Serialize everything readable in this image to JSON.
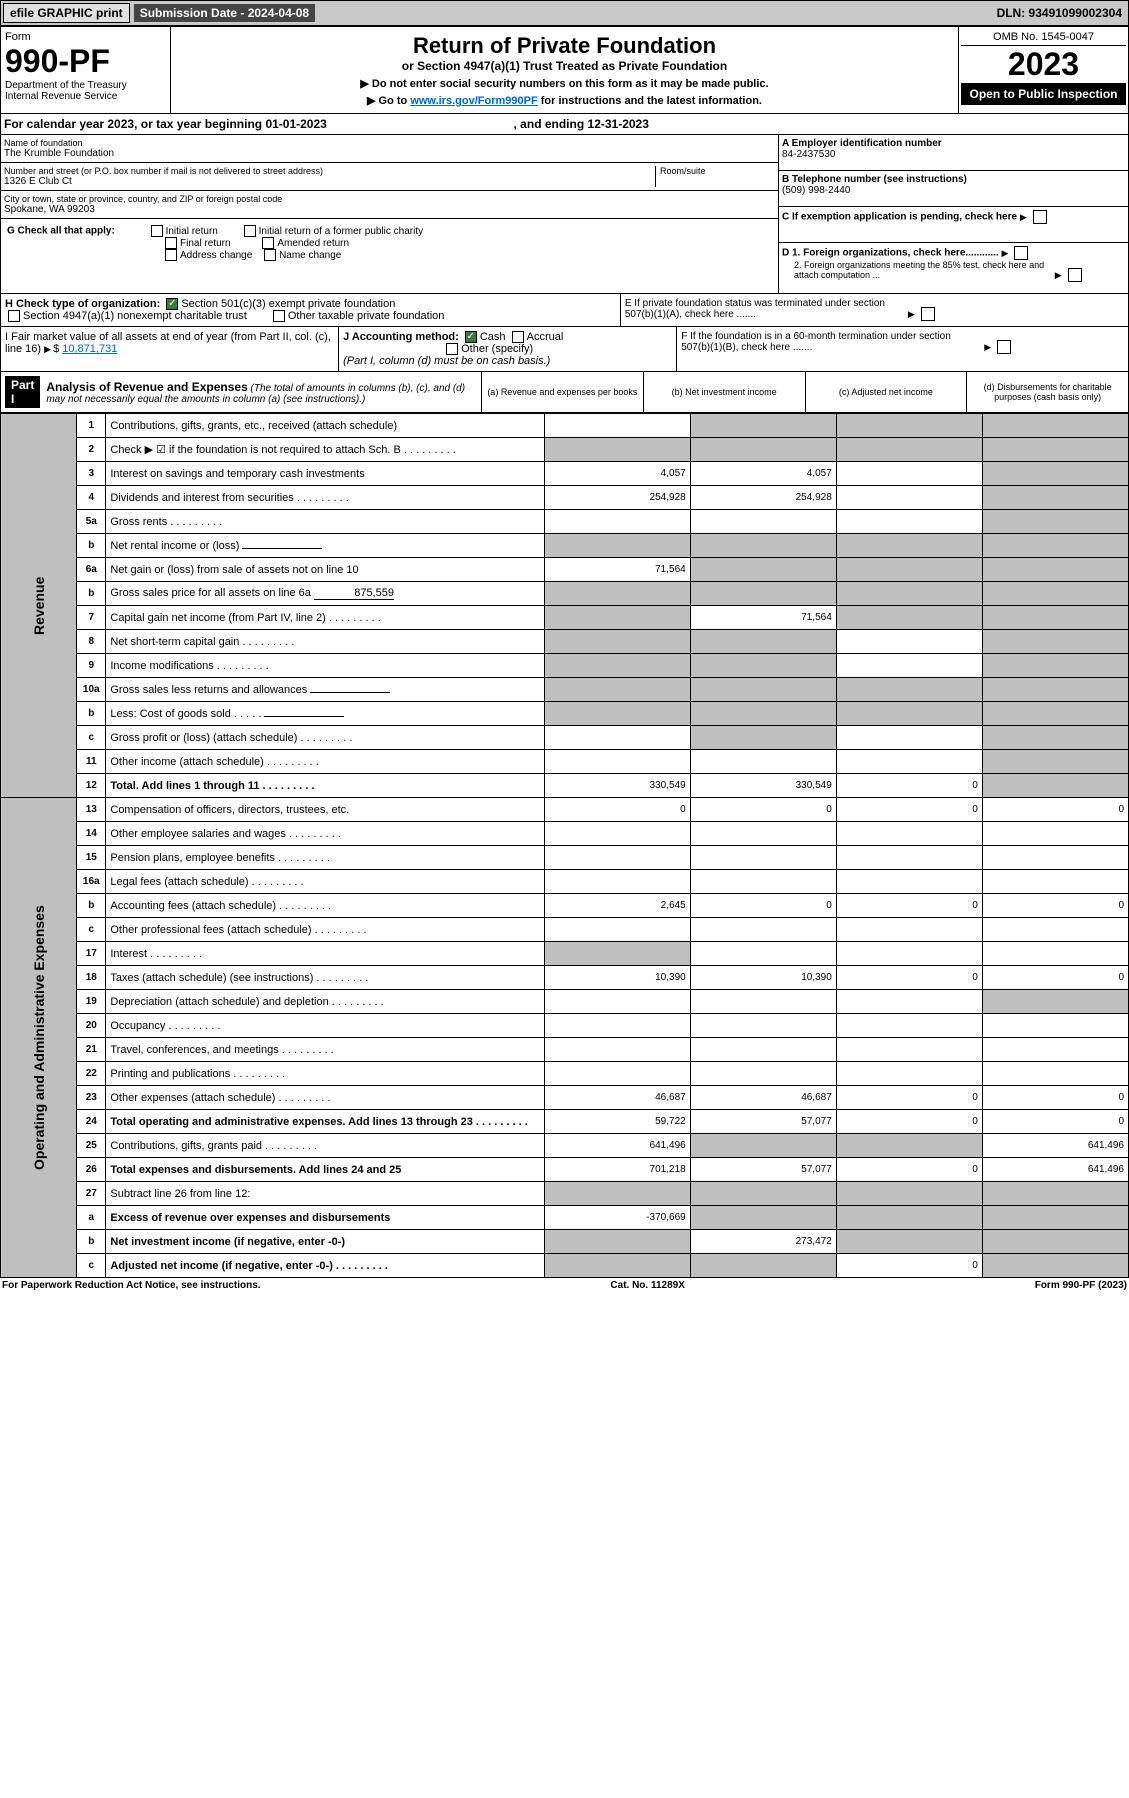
{
  "topbar": {
    "efile": "efile GRAPHIC print",
    "subdate_label": "Submission Date - 2024-04-08",
    "dln": "DLN: 93491099002304"
  },
  "hdr": {
    "form": "Form",
    "num": "990-PF",
    "dept": "Department of the Treasury\nInternal Revenue Service",
    "title": "Return of Private Foundation",
    "sub": "or Section 4947(a)(1) Trust Treated as Private Foundation",
    "note1": "▶ Do not enter social security numbers on this form as it may be made public.",
    "note2": "▶ Go to ",
    "note2link": "www.irs.gov/Form990PF",
    "note2rest": " for instructions and the latest information.",
    "omb": "OMB No. 1545-0047",
    "year": "2023",
    "open": "Open to Public Inspection"
  },
  "cal": {
    "text": "For calendar year 2023, or tax year beginning 01-01-2023",
    "end": ", and ending 12-31-2023"
  },
  "info": {
    "name_lbl": "Name of foundation",
    "name": "The Krumble Foundation",
    "addr_lbl": "Number and street (or P.O. box number if mail is not delivered to street address)",
    "addr": "1326 E Club Ct",
    "room": "Room/suite",
    "city_lbl": "City or town, state or province, country, and ZIP or foreign postal code",
    "city": "Spokane, WA  99203",
    "ein_lbl": "A Employer identification number",
    "ein": "84-2437530",
    "tel_lbl": "B Telephone number (see instructions)",
    "tel": "(509) 998-2440",
    "c": "C If exemption application is pending, check here",
    "d1": "D 1. Foreign organizations, check here............",
    "d2": "2. Foreign organizations meeting the 85% test, check here and attach computation ...",
    "e": "E  If private foundation status was terminated under section 507(b)(1)(A), check here .......",
    "f": "F  If the foundation is in a 60-month termination under section 507(b)(1)(B), check here ......."
  },
  "g": {
    "lbl": "G Check all that apply:",
    "opts": [
      "Initial return",
      "Initial return of a former public charity",
      "Final return",
      "Amended return",
      "Address change",
      "Name change"
    ]
  },
  "h": {
    "lbl": "H Check type of organization:",
    "o1": "Section 501(c)(3) exempt private foundation",
    "o2": "Section 4947(a)(1) nonexempt charitable trust",
    "o3": "Other taxable private foundation"
  },
  "i": {
    "lbl": "I Fair market value of all assets at end of year (from Part II, col. (c), line 16)",
    "val": "10,871,731"
  },
  "j": {
    "lbl": "J Accounting method:",
    "o1": "Cash",
    "o2": "Accrual",
    "o3": "Other (specify)",
    "sub": "(Part I, column (d) must be on cash basis.)"
  },
  "part1": {
    "lbl": "Part I",
    "title": "Analysis of Revenue and Expenses",
    "sub": "(The total of amounts in columns (b), (c), and (d) may not necessarily equal the amounts in column (a) (see instructions).)",
    "ch": [
      "(a)   Revenue and expenses per books",
      "(b)   Net investment income",
      "(c)   Adjusted net income",
      "(d)  Disbursements for charitable purposes (cash basis only)"
    ]
  },
  "side": {
    "rev": "Revenue",
    "exp": "Operating and Administrative Expenses"
  },
  "rows": [
    {
      "n": "1",
      "d": "Contributions, gifts, grants, etc., received (attach schedule)",
      "a": "",
      "b": "g",
      "c": "g",
      "dd": "g"
    },
    {
      "n": "2",
      "d": "Check ▶ ☑ if the foundation is not required to attach Sch. B",
      "a": "g",
      "b": "g",
      "c": "g",
      "dd": "g",
      "dots": 1
    },
    {
      "n": "3",
      "d": "Interest on savings and temporary cash investments",
      "a": "4,057",
      "b": "4,057",
      "c": "",
      "dd": "g"
    },
    {
      "n": "4",
      "d": "Dividends and interest from securities",
      "a": "254,928",
      "b": "254,928",
      "c": "",
      "dd": "g",
      "dots": 1
    },
    {
      "n": "5a",
      "d": "Gross rents",
      "a": "",
      "b": "",
      "c": "",
      "dd": "g",
      "dots": 1
    },
    {
      "n": "b",
      "d": "Net rental income or (loss)",
      "a": "g",
      "b": "g",
      "c": "g",
      "dd": "g",
      "inline": 1
    },
    {
      "n": "6a",
      "d": "Net gain or (loss) from sale of assets not on line 10",
      "a": "71,564",
      "b": "g",
      "c": "g",
      "dd": "g"
    },
    {
      "n": "b",
      "d": "Gross sales price for all assets on line 6a",
      "a": "g",
      "b": "g",
      "c": "g",
      "dd": "g",
      "inline": 1,
      "inlinev": "875,559"
    },
    {
      "n": "7",
      "d": "Capital gain net income (from Part IV, line 2)",
      "a": "g",
      "b": "71,564",
      "c": "g",
      "dd": "g",
      "dots": 1
    },
    {
      "n": "8",
      "d": "Net short-term capital gain",
      "a": "g",
      "b": "g",
      "c": "",
      "dd": "g",
      "dots": 1
    },
    {
      "n": "9",
      "d": "Income modifications",
      "a": "g",
      "b": "g",
      "c": "",
      "dd": "g",
      "dots": 1
    },
    {
      "n": "10a",
      "d": "Gross sales less returns and allowances",
      "a": "g",
      "b": "g",
      "c": "g",
      "dd": "g",
      "inline": 1
    },
    {
      "n": "b",
      "d": "Less: Cost of goods sold",
      "a": "g",
      "b": "g",
      "c": "g",
      "dd": "g",
      "inline": 1,
      "dots": 1
    },
    {
      "n": "c",
      "d": "Gross profit or (loss) (attach schedule)",
      "a": "",
      "b": "g",
      "c": "",
      "dd": "g",
      "dots": 1
    },
    {
      "n": "11",
      "d": "Other income (attach schedule)",
      "a": "",
      "b": "",
      "c": "",
      "dd": "g",
      "dots": 1
    },
    {
      "n": "12",
      "d": "Total. Add lines 1 through 11",
      "a": "330,549",
      "b": "330,549",
      "c": "0",
      "dd": "g",
      "bold": 1,
      "dots": 1
    },
    {
      "n": "13",
      "d": "Compensation of officers, directors, trustees, etc.",
      "a": "0",
      "b": "0",
      "c": "0",
      "dd": "0"
    },
    {
      "n": "14",
      "d": "Other employee salaries and wages",
      "a": "",
      "b": "",
      "c": "",
      "dd": "",
      "dots": 1
    },
    {
      "n": "15",
      "d": "Pension plans, employee benefits",
      "a": "",
      "b": "",
      "c": "",
      "dd": "",
      "dots": 1
    },
    {
      "n": "16a",
      "d": "Legal fees (attach schedule)",
      "a": "",
      "b": "",
      "c": "",
      "dd": "",
      "dots": 1
    },
    {
      "n": "b",
      "d": "Accounting fees (attach schedule)",
      "a": "2,645",
      "b": "0",
      "c": "0",
      "dd": "0",
      "dots": 1
    },
    {
      "n": "c",
      "d": "Other professional fees (attach schedule)",
      "a": "",
      "b": "",
      "c": "",
      "dd": "",
      "dots": 1
    },
    {
      "n": "17",
      "d": "Interest",
      "a": "g",
      "b": "",
      "c": "",
      "dd": "",
      "dots": 1
    },
    {
      "n": "18",
      "d": "Taxes (attach schedule) (see instructions)",
      "a": "10,390",
      "b": "10,390",
      "c": "0",
      "dd": "0",
      "dots": 1
    },
    {
      "n": "19",
      "d": "Depreciation (attach schedule) and depletion",
      "a": "",
      "b": "",
      "c": "",
      "dd": "g",
      "dots": 1
    },
    {
      "n": "20",
      "d": "Occupancy",
      "a": "",
      "b": "",
      "c": "",
      "dd": "",
      "dots": 1
    },
    {
      "n": "21",
      "d": "Travel, conferences, and meetings",
      "a": "",
      "b": "",
      "c": "",
      "dd": "",
      "dots": 1
    },
    {
      "n": "22",
      "d": "Printing and publications",
      "a": "",
      "b": "",
      "c": "",
      "dd": "",
      "dots": 1
    },
    {
      "n": "23",
      "d": "Other expenses (attach schedule)",
      "a": "46,687",
      "b": "46,687",
      "c": "0",
      "dd": "0",
      "dots": 1
    },
    {
      "n": "24",
      "d": "Total operating and administrative expenses. Add lines 13 through 23",
      "a": "59,722",
      "b": "57,077",
      "c": "0",
      "dd": "0",
      "bold": 1,
      "dots": 1
    },
    {
      "n": "25",
      "d": "Contributions, gifts, grants paid",
      "a": "641,496",
      "b": "g",
      "c": "g",
      "dd": "641,496",
      "dots": 1
    },
    {
      "n": "26",
      "d": "Total expenses and disbursements. Add lines 24 and 25",
      "a": "701,218",
      "b": "57,077",
      "c": "0",
      "dd": "641,496",
      "bold": 1
    },
    {
      "n": "27",
      "d": "Subtract line 26 from line 12:",
      "a": "g",
      "b": "g",
      "c": "g",
      "dd": "g"
    },
    {
      "n": "a",
      "d": "Excess of revenue over expenses and disbursements",
      "a": "-370,669",
      "b": "g",
      "c": "g",
      "dd": "g",
      "bold": 1
    },
    {
      "n": "b",
      "d": "Net investment income (if negative, enter -0-)",
      "a": "g",
      "b": "273,472",
      "c": "g",
      "dd": "g",
      "bold": 1
    },
    {
      "n": "c",
      "d": "Adjusted net income (if negative, enter -0-)",
      "a": "g",
      "b": "g",
      "c": "0",
      "dd": "g",
      "bold": 1,
      "dots": 1
    }
  ],
  "ftr": {
    "l": "For Paperwork Reduction Act Notice, see instructions.",
    "c": "Cat. No. 11289X",
    "r": "Form 990-PF (2023)"
  }
}
